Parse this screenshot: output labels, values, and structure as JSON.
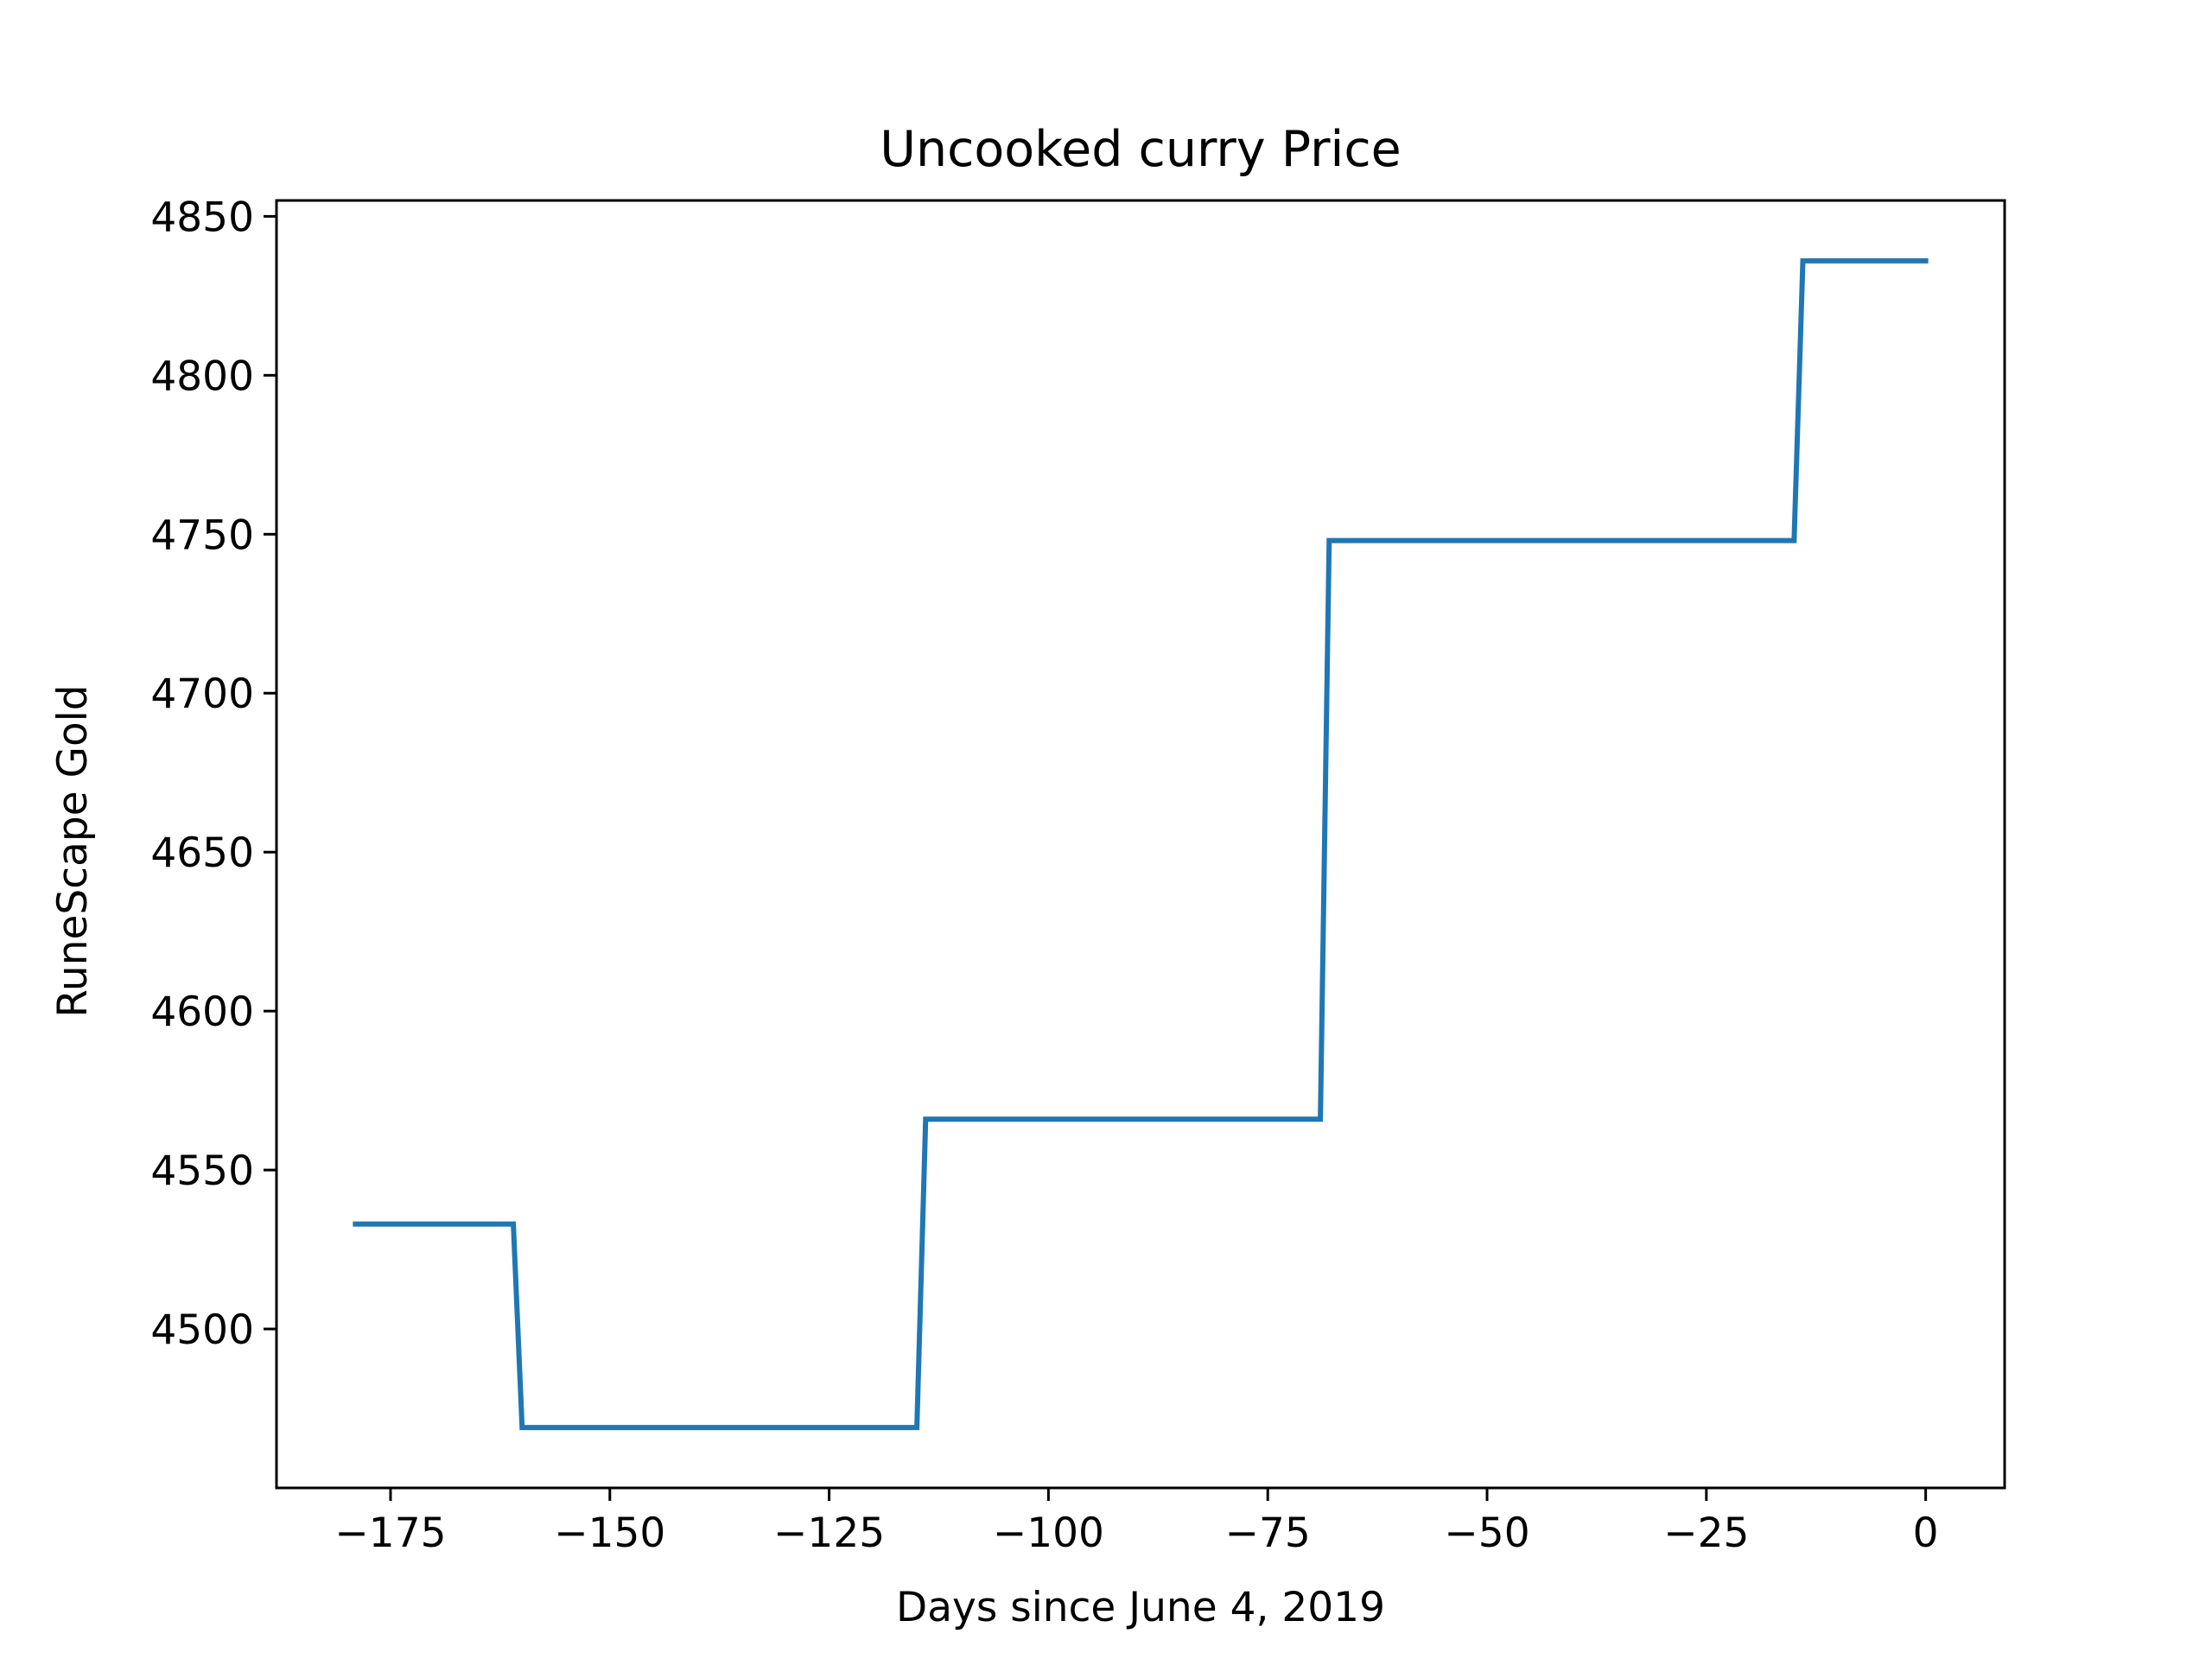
{
  "chart_data": {
    "type": "line",
    "title": "Uncooked curry Price",
    "xlabel": "Days since June 4, 2019",
    "ylabel": "RuneScape Gold",
    "xlim": [
      -188,
      9
    ],
    "ylim": [
      4450,
      4855
    ],
    "xticks": [
      -175,
      -150,
      -125,
      -100,
      -75,
      -50,
      -25,
      0
    ],
    "xtick_labels": [
      "−175",
      "−150",
      "−125",
      "−100",
      "−75",
      "−50",
      "−25",
      "0"
    ],
    "yticks": [
      4500,
      4550,
      4600,
      4650,
      4700,
      4750,
      4800,
      4850
    ],
    "ytick_labels": [
      "4500",
      "4550",
      "4600",
      "4650",
      "4700",
      "4750",
      "4800",
      "4850"
    ],
    "grid": false,
    "legend": "none",
    "series": [
      {
        "color": "#1f77b4",
        "x": [
          -179,
          -161,
          -160,
          -115,
          -114,
          -69,
          -68,
          -15,
          -14,
          0
        ],
        "y": [
          4533,
          4533,
          4469,
          4469,
          4566,
          4566,
          4748,
          4748,
          4836,
          4836
        ]
      }
    ]
  }
}
